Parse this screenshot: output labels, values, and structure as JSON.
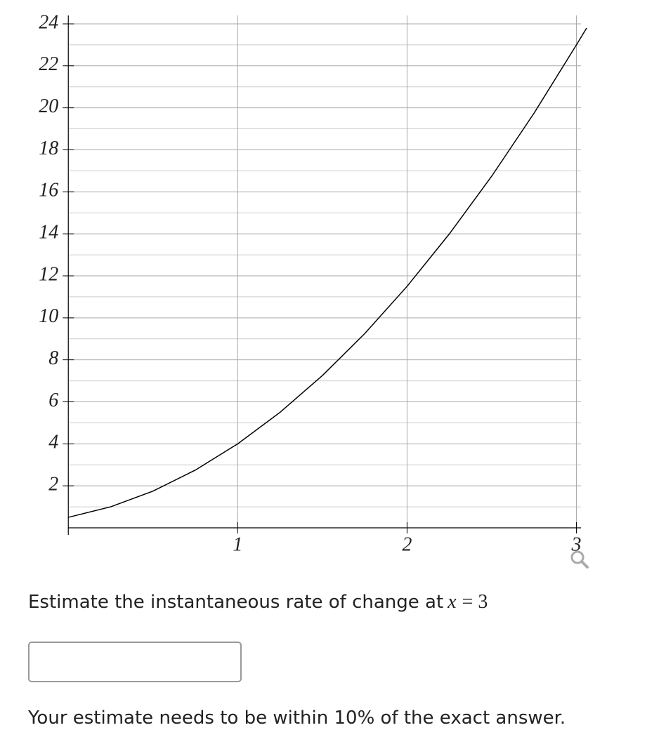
{
  "chart_data": {
    "type": "line",
    "x": [
      0,
      0.25,
      0.5,
      0.75,
      1,
      1.25,
      1.5,
      1.75,
      2,
      2.25,
      2.5,
      2.75,
      3,
      3.06
    ],
    "series": [
      {
        "color": "#000000",
        "values": [
          0.5,
          1.0,
          1.75,
          2.75,
          4,
          5.5,
          7.25,
          9.25,
          11.5,
          14,
          16.75,
          19.75,
          23,
          23.8
        ]
      }
    ],
    "xlim": [
      -0.03,
      3.06
    ],
    "ylim": [
      0,
      24.4
    ],
    "xticks": [
      1,
      2,
      3
    ],
    "yticks": [
      2,
      4,
      6,
      8,
      10,
      12,
      14,
      16,
      18,
      20,
      22,
      24
    ],
    "yminorticks": [
      1,
      3,
      5,
      7,
      9,
      11,
      13,
      15,
      17,
      19,
      21,
      23
    ],
    "grid": true
  },
  "question": {
    "prefix": "Estimate the instantaneous rate of change at",
    "math_var": "x",
    "math_rest": "= 3"
  },
  "footer": "Your estimate needs to be within 10% of the exact answer."
}
